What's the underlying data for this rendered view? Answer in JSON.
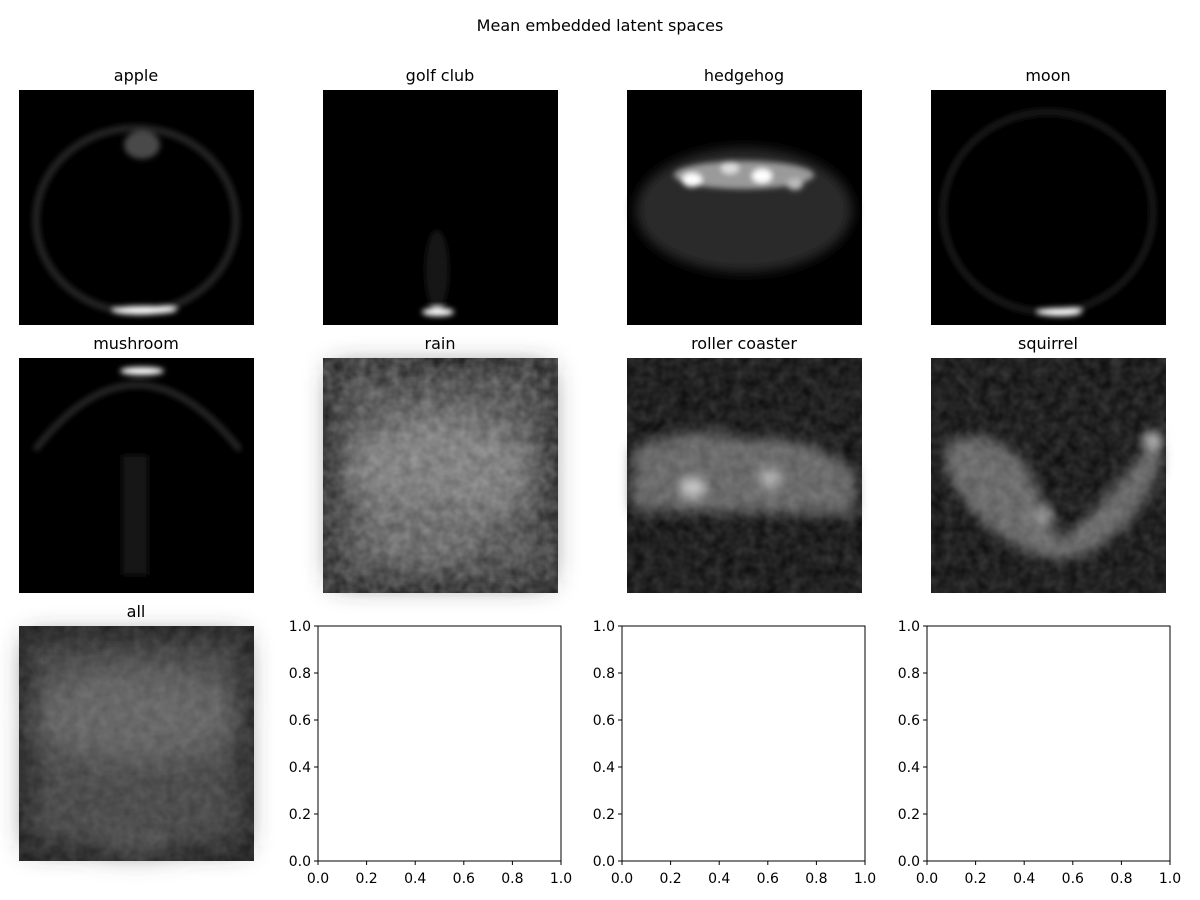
{
  "figure": {
    "title": "Mean embedded latent spaces"
  },
  "chart_data": {
    "type": "heatmap",
    "title": "Mean embedded latent spaces",
    "grid": [
      3,
      4
    ],
    "panels": [
      {
        "title": "apple",
        "kind": "image",
        "colormap": "gray"
      },
      {
        "title": "golf club",
        "kind": "image",
        "colormap": "gray"
      },
      {
        "title": "hedgehog",
        "kind": "image",
        "colormap": "gray"
      },
      {
        "title": "moon",
        "kind": "image",
        "colormap": "gray"
      },
      {
        "title": "mushroom",
        "kind": "image",
        "colormap": "gray"
      },
      {
        "title": "rain",
        "kind": "image",
        "colormap": "gray"
      },
      {
        "title": "roller coaster",
        "kind": "image",
        "colormap": "gray"
      },
      {
        "title": "squirrel",
        "kind": "image",
        "colormap": "gray"
      },
      {
        "title": "all",
        "kind": "image",
        "colormap": "gray"
      },
      {
        "title": "",
        "kind": "empty_axes",
        "xlim": [
          0,
          1
        ],
        "ylim": [
          0,
          1
        ]
      },
      {
        "title": "",
        "kind": "empty_axes",
        "xlim": [
          0,
          1
        ],
        "ylim": [
          0,
          1
        ]
      },
      {
        "title": "",
        "kind": "empty_axes",
        "xlim": [
          0,
          1
        ],
        "ylim": [
          0,
          1
        ]
      }
    ],
    "empty_axes_ticks": {
      "x": [
        "0.0",
        "0.2",
        "0.4",
        "0.6",
        "0.8",
        "1.0"
      ],
      "y": [
        "0.0",
        "0.2",
        "0.4",
        "0.6",
        "0.8",
        "1.0"
      ]
    }
  }
}
